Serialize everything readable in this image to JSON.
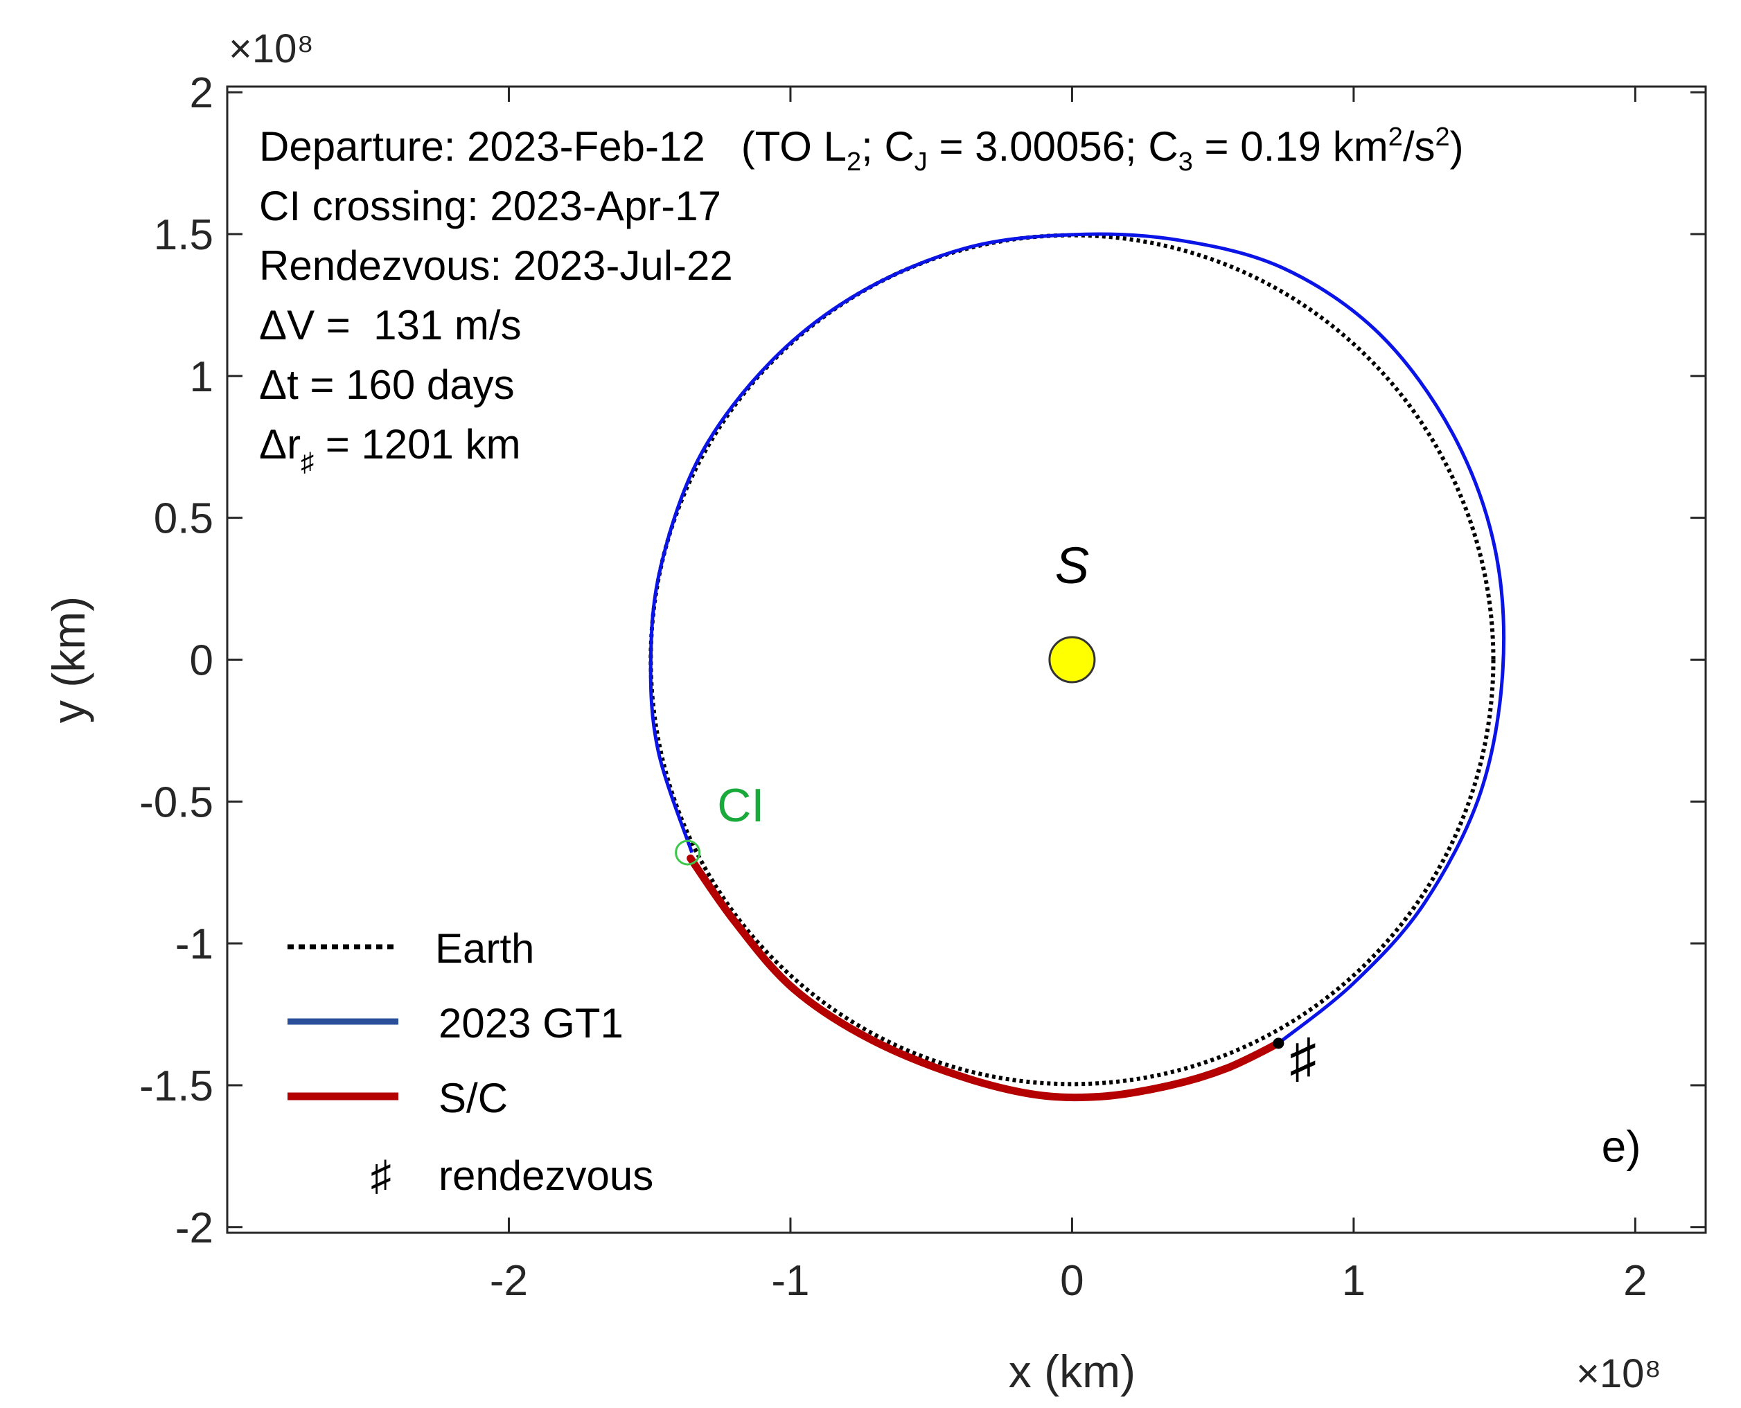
{
  "chart_data": {
    "type": "line",
    "xlabel": "x (km)",
    "ylabel": "y (km)",
    "x_exponent_label": "×10⁸",
    "y_exponent_label": "×10⁸",
    "xlim": [
      -3.0,
      2.25
    ],
    "ylim": [
      -2.02,
      2.02
    ],
    "x_ticks": [
      -2,
      -1,
      0,
      1,
      2
    ],
    "x_tick_labels": [
      "-2",
      "-1",
      "0",
      "1",
      "2"
    ],
    "y_ticks": [
      2,
      1.5,
      1,
      0.5,
      0,
      -0.5,
      -1,
      -1.5,
      -2
    ],
    "y_tick_labels": [
      "2",
      "1.5",
      "1",
      "0.5",
      "0",
      "-0.5",
      "-1",
      "-1.5",
      "-2"
    ],
    "grid": false,
    "info": {
      "departure_line": "Departure: 2023-Feb-12",
      "departure_detail": {
        "open": "(TO L",
        "l_sub": "2",
        "cj_pre": "; C",
        "cj_sub": "J",
        "cj_val": " = 3.00056; C",
        "c3_sub": "3",
        "c3_val": " = 0.19 km",
        "km_sup": "2",
        "per_s": "/s",
        "s_sup": "2",
        "close": ")"
      },
      "ci_crossing": "CI crossing: 2023-Apr-17",
      "rendezvous": "Rendezvous: 2023-Jul-22",
      "delta_v": "ΔV =  131 m/s",
      "delta_t": "Δt = 160 days",
      "delta_r_prefix": "Δr",
      "delta_r_sub": "♯",
      "delta_r_value": " = 1201 km"
    },
    "series": [
      {
        "name": "Earth",
        "style": "dotted",
        "color": "#000000",
        "radius": 1.496,
        "center": [
          0,
          0
        ]
      },
      {
        "name": "2023 GT1",
        "style": "solid",
        "color": "#0a14e6",
        "points": [
          [
            0.733,
            -1.352
          ],
          [
            1.0,
            -1.14
          ],
          [
            1.25,
            -0.86
          ],
          [
            1.45,
            -0.47
          ],
          [
            1.53,
            -0.03
          ],
          [
            1.5,
            0.4
          ],
          [
            1.35,
            0.8
          ],
          [
            1.09,
            1.15
          ],
          [
            0.75,
            1.38
          ],
          [
            0.37,
            1.48
          ],
          [
            0.0,
            1.498
          ],
          [
            -0.38,
            1.45
          ],
          [
            -0.76,
            1.29
          ],
          [
            -1.07,
            1.05
          ],
          [
            -1.32,
            0.72
          ],
          [
            -1.46,
            0.33
          ],
          [
            -1.496,
            0.0
          ],
          [
            -1.47,
            -0.32
          ],
          [
            -1.35,
            -0.68
          ]
        ]
      },
      {
        "name": "S/C",
        "style": "solid",
        "color": "#b40000",
        "points": [
          [
            -1.355,
            -0.7
          ],
          [
            -1.2,
            -0.92
          ],
          [
            -1.0,
            -1.15
          ],
          [
            -0.75,
            -1.32
          ],
          [
            -0.45,
            -1.45
          ],
          [
            -0.15,
            -1.53
          ],
          [
            0.1,
            -1.54
          ],
          [
            0.35,
            -1.5
          ],
          [
            0.55,
            -1.44
          ],
          [
            0.733,
            -1.352
          ]
        ]
      }
    ],
    "annotations": [
      {
        "label": "S",
        "x": 0.0,
        "y": 0.27,
        "note": "Sun",
        "marker_color": "#ffff00"
      },
      {
        "label": "CI",
        "x": -1.26,
        "y": -0.57,
        "color": "#1aaa3c"
      },
      {
        "label": "♯",
        "x": 0.82,
        "y": -1.47
      },
      {
        "label": "e)",
        "x": 1.95,
        "y": -1.77
      }
    ],
    "sun": {
      "x": 0,
      "y": 0,
      "radius": 0.08
    },
    "ci_point": {
      "x": -1.365,
      "y": -0.68
    },
    "rendezvous_point": {
      "x": 0.733,
      "y": -1.352
    },
    "legend": {
      "position": "bottom-left",
      "entries": [
        {
          "label": "Earth",
          "style": "dotted",
          "color": "#000000"
        },
        {
          "label": "2023 GT1",
          "style": "solid",
          "color": "#2a4e9a"
        },
        {
          "label": "S/C",
          "style": "solid",
          "color": "#b40000"
        },
        {
          "label": "rendezvous",
          "symbol": "♯",
          "color": "#000000"
        }
      ]
    }
  }
}
